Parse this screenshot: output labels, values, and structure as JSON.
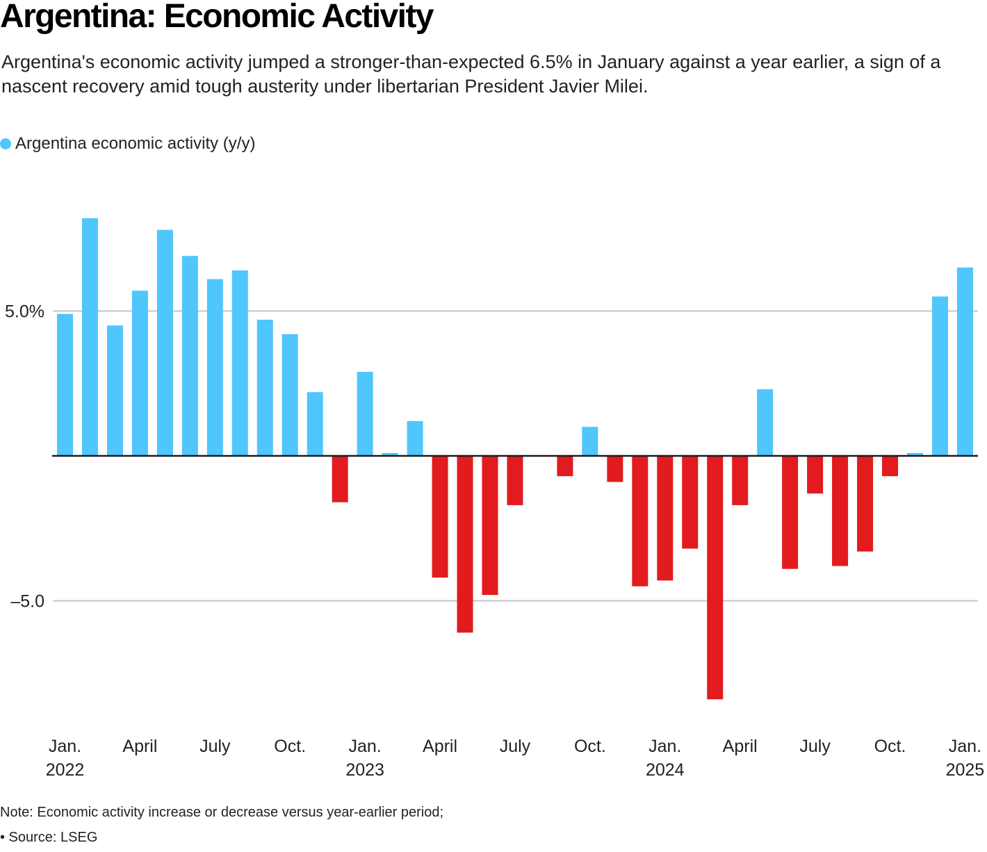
{
  "header": {
    "title": "Argentina: Economic Activity",
    "subtitle": "Argentina's economic activity jumped a stronger-than-expected 6.5% in January against a year earlier, a sign of a nascent recovery amid tough austerity under libertarian President Javier Milei."
  },
  "legend": {
    "label": "Argentina economic activity (y/y)",
    "color": "#4fc6fc"
  },
  "footer": {
    "note": "Note: Economic activity increase or decrease versus year-earlier period;",
    "source": "• Source: LSEG"
  },
  "chart_data": {
    "type": "bar",
    "title": "Argentina: Economic Activity",
    "xlabel": "",
    "ylabel": "",
    "ylim": [
      -9,
      9
    ],
    "grid": true,
    "legend_position": "top-left",
    "positive_color": "#4fc6fc",
    "negative_color": "#e11b1e",
    "y_ticks": [
      {
        "value": 5,
        "label": "5.0%"
      },
      {
        "value": -5,
        "label": "–5.0"
      }
    ],
    "x_ticks": [
      {
        "index": 0,
        "line1": "Jan.",
        "line2": "2022"
      },
      {
        "index": 3,
        "line1": "April",
        "line2": ""
      },
      {
        "index": 6,
        "line1": "July",
        "line2": ""
      },
      {
        "index": 9,
        "line1": "Oct.",
        "line2": ""
      },
      {
        "index": 12,
        "line1": "Jan.",
        "line2": "2023"
      },
      {
        "index": 15,
        "line1": "April",
        "line2": ""
      },
      {
        "index": 18,
        "line1": "July",
        "line2": ""
      },
      {
        "index": 21,
        "line1": "Oct.",
        "line2": ""
      },
      {
        "index": 24,
        "line1": "Jan.",
        "line2": "2024"
      },
      {
        "index": 27,
        "line1": "April",
        "line2": ""
      },
      {
        "index": 30,
        "line1": "July",
        "line2": ""
      },
      {
        "index": 33,
        "line1": "Oct.",
        "line2": ""
      },
      {
        "index": 36,
        "line1": "Jan.",
        "line2": "2025"
      }
    ],
    "categories": [
      "2022-01",
      "2022-02",
      "2022-03",
      "2022-04",
      "2022-05",
      "2022-06",
      "2022-07",
      "2022-08",
      "2022-09",
      "2022-10",
      "2022-11",
      "2022-12",
      "2023-01",
      "2023-02",
      "2023-03",
      "2023-04",
      "2023-05",
      "2023-06",
      "2023-07",
      "2023-08",
      "2023-09",
      "2023-10",
      "2023-11",
      "2023-12",
      "2024-01",
      "2024-02",
      "2024-03",
      "2024-04",
      "2024-05",
      "2024-06",
      "2024-07",
      "2024-08",
      "2024-09",
      "2024-10",
      "2024-11",
      "2024-12",
      "2025-01"
    ],
    "series": [
      {
        "name": "Argentina economic activity (y/y)",
        "values": [
          4.9,
          8.2,
          4.5,
          5.7,
          7.8,
          6.9,
          6.1,
          6.4,
          4.7,
          4.2,
          2.2,
          -1.6,
          2.9,
          0.1,
          1.2,
          -4.2,
          -6.1,
          -4.8,
          -1.7,
          0.0,
          -0.7,
          1.0,
          -0.9,
          -4.5,
          -4.3,
          -3.2,
          -8.4,
          -1.7,
          2.3,
          -3.9,
          -1.3,
          -3.8,
          -3.3,
          -0.7,
          0.1,
          5.5,
          6.5
        ]
      }
    ]
  }
}
